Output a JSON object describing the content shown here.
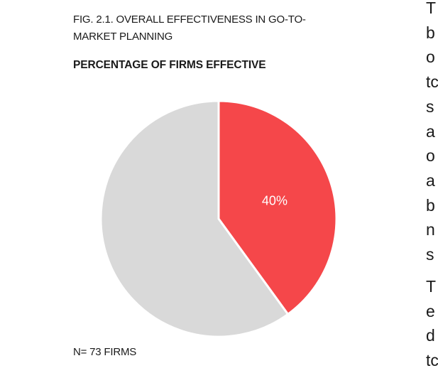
{
  "figure": {
    "caption_line1": "FIG. 2.1. OVERALL EFFECTIVENESS IN GO-TO-",
    "caption_line2": "MARKET PLANNING",
    "footnote": "N= 73 FIRMS"
  },
  "chart_data": {
    "type": "pie",
    "title": "FIG. 2.1. OVERALL EFFECTIVENESS IN GO-TO-MARKET PLANNING",
    "subtitle": "PERCENTAGE OF FIRMS EFFECTIVE",
    "slices": [
      {
        "label": "40%",
        "value": 40,
        "color": "#f5474a"
      },
      {
        "label": "",
        "value": 60,
        "color": "#d9d9d9"
      }
    ],
    "legend": "none",
    "note": "N= 73 FIRMS"
  },
  "body_text": {
    "para1_letters": [
      "T",
      "b",
      "o",
      "tc",
      "s",
      "a",
      "o",
      "a",
      "b",
      "n",
      "s"
    ],
    "para2_letters": [
      "T",
      "e",
      "d",
      "tc"
    ]
  }
}
